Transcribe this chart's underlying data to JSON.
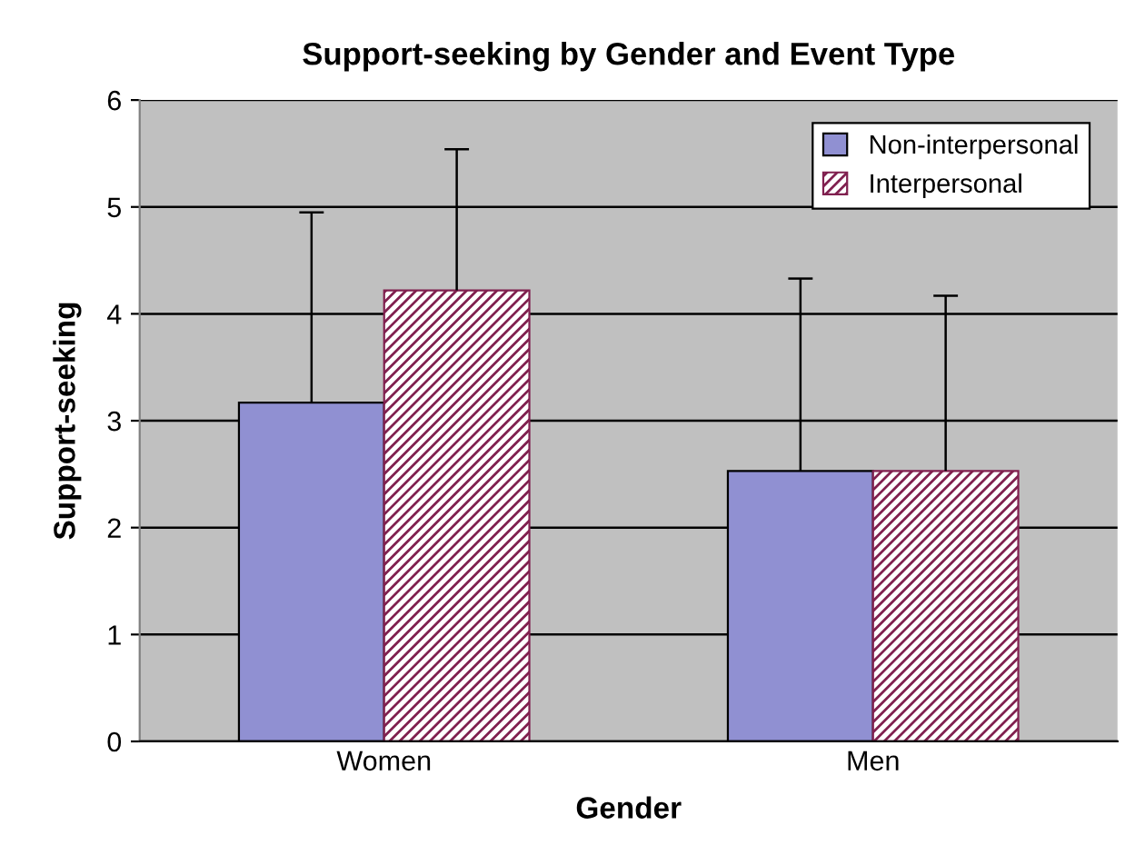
{
  "chart_data": {
    "type": "bar",
    "title": "Support-seeking by Gender and Event Type",
    "xlabel": "Gender",
    "ylabel": "Support-seeking",
    "categories": [
      "Women",
      "Men"
    ],
    "series": [
      {
        "name": "Non-interpersonal",
        "color": "#9090d2",
        "values": [
          3.17,
          2.53
        ],
        "errors": [
          [
            3.17,
            4.95
          ],
          [
            2.53,
            4.33
          ]
        ]
      },
      {
        "name": "Interpersonal",
        "color": "#80204f",
        "values": [
          4.22,
          2.53
        ],
        "errors": [
          [
            4.22,
            5.54
          ],
          [
            2.53,
            4.17
          ]
        ]
      }
    ],
    "ylim": [
      0,
      6
    ],
    "yticks": [
      0,
      1,
      2,
      3,
      4,
      5,
      6
    ],
    "grid": "y",
    "legend": "top right"
  }
}
